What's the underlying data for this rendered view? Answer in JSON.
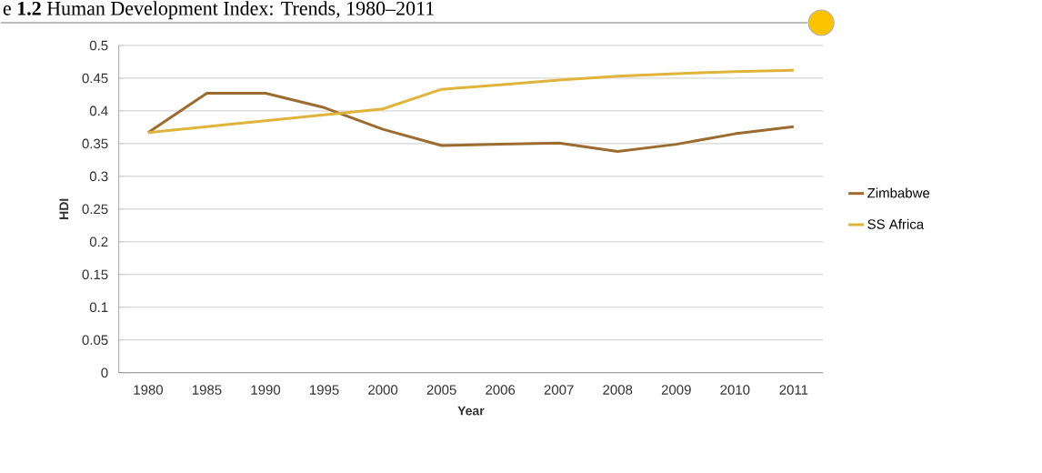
{
  "chart_data": {
    "type": "line",
    "title": "e **1.2** Human Development Index: Trends, 1980–2011",
    "xlabel": "Year",
    "ylabel": "HDI",
    "categories": [
      "1980",
      "1985",
      "1990",
      "1995",
      "2000",
      "2005",
      "2006",
      "2007",
      "2008",
      "2009",
      "2010",
      "2011"
    ],
    "series": [
      {
        "name": "Zimbabwe",
        "color": "#9c6b30",
        "values": [
          0.367,
          0.427,
          0.427,
          0.405,
          0.372,
          0.347,
          0.349,
          0.351,
          0.338,
          0.349,
          0.365,
          0.376
        ]
      },
      {
        "name": "SS Africa",
        "color": "#e0b43a",
        "values": [
          0.367,
          0.376,
          0.385,
          0.394,
          0.403,
          0.433,
          0.44,
          0.447,
          0.453,
          0.457,
          0.46,
          0.462
        ]
      }
    ],
    "ylim": [
      0,
      0.5
    ],
    "yticks": [
      0,
      0.05,
      0.1,
      0.15,
      0.2,
      0.25,
      0.3,
      0.35,
      0.4,
      0.45,
      0.5
    ],
    "grid": "y",
    "legend": "right",
    "marker": "none",
    "line_style": "solid"
  }
}
